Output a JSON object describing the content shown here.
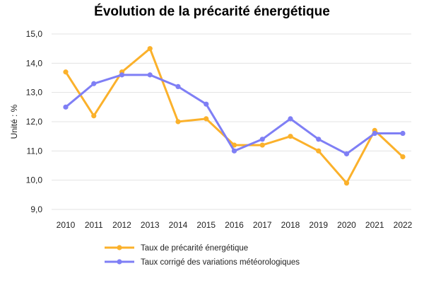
{
  "chart_data": {
    "type": "line",
    "title": "Évolution de la précarité énergétique",
    "ylabel": "Unité : %",
    "xlabel": "",
    "categories": [
      "2010",
      "2011",
      "2012",
      "2013",
      "2014",
      "2015",
      "2016",
      "2017",
      "2018",
      "2019",
      "2020",
      "2021",
      "2022"
    ],
    "ylim": [
      9.0,
      15.0
    ],
    "yticks": [
      "9,0",
      "10,0",
      "11,0",
      "12,0",
      "13,0",
      "14,0",
      "15,0"
    ],
    "grid": "horizontal",
    "legend_position": "bottom",
    "series": [
      {
        "name": "Taux de précarité énergétique",
        "color": "#FBB12B",
        "values": [
          13.7,
          12.2,
          13.7,
          14.5,
          12.0,
          12.1,
          11.2,
          11.2,
          11.5,
          11.0,
          9.9,
          11.7,
          10.8
        ]
      },
      {
        "name": "Taux corrigé des variations météorologiques",
        "color": "#7F7FF5",
        "values": [
          12.5,
          13.3,
          13.6,
          13.6,
          13.2,
          12.6,
          11.0,
          11.4,
          12.1,
          11.4,
          10.9,
          11.6,
          11.6
        ]
      }
    ]
  }
}
